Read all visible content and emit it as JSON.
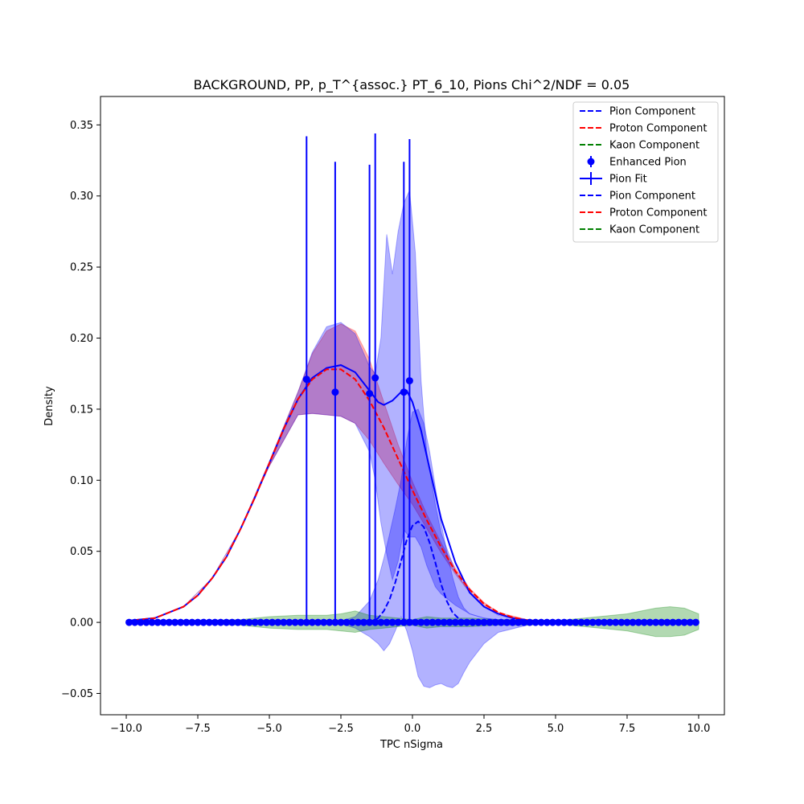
{
  "chart_data": {
    "type": "line",
    "title": "BACKGROUND, PP, p_T^{assoc.} PT_6_10, Pions Chi^2/NDF = 0.05",
    "xlabel": "TPC nSigma",
    "ylabel": "Density",
    "xlim": [
      -10.9,
      10.9
    ],
    "ylim": [
      -0.065,
      0.37
    ],
    "x_ticks": [
      -10,
      -7.5,
      -5,
      -2.5,
      0,
      2.5,
      5,
      7.5,
      10
    ],
    "x_tick_labels": [
      "−10.0",
      "−7.5",
      "−5.0",
      "−2.5",
      "0.0",
      "2.5",
      "5.0",
      "7.5",
      "10.0"
    ],
    "y_ticks": [
      -0.05,
      0,
      0.05,
      0.1,
      0.15,
      0.2,
      0.25,
      0.3,
      0.35
    ],
    "y_tick_labels": [
      "−0.05",
      "0.00",
      "0.05",
      "0.10",
      "0.15",
      "0.20",
      "0.25",
      "0.30",
      "0.35"
    ],
    "grid": false,
    "legend_position": "top-right",
    "colors": {
      "pion": "#0000ff",
      "proton": "#ff0000",
      "kaon": "#008000"
    },
    "legend": [
      {
        "label": "Pion Component",
        "style": "dashed",
        "color": "#0000ff"
      },
      {
        "label": "Proton Component",
        "style": "dashed",
        "color": "#ff0000"
      },
      {
        "label": "Kaon Component",
        "style": "dashed",
        "color": "#008000"
      },
      {
        "label": "Enhanced Pion",
        "style": "marker",
        "color": "#0000ff"
      },
      {
        "label": "Pion Fit",
        "style": "errorbar",
        "color": "#0000ff"
      },
      {
        "label": "Pion Component",
        "style": "dashed",
        "color": "#0000ff"
      },
      {
        "label": "Proton Component",
        "style": "dashed",
        "color": "#ff0000"
      },
      {
        "label": "Kaon Component",
        "style": "dashed",
        "color": "#008000"
      }
    ],
    "series": [
      {
        "name": "Pion Fit",
        "style": "solid",
        "color": "#0000ff",
        "x": [
          -10,
          -9,
          -8,
          -7.5,
          -7,
          -6.5,
          -6,
          -5.5,
          -5,
          -4.5,
          -4,
          -3.5,
          -3,
          -2.5,
          -2,
          -1.5,
          -1.2,
          -1,
          -0.7,
          -0.4,
          -0.2,
          0,
          0.3,
          0.6,
          1,
          1.5,
          2,
          2.5,
          3,
          3.5,
          4,
          4.5,
          5,
          6,
          7,
          8,
          9,
          10
        ],
        "y": [
          0.001,
          0.003,
          0.011,
          0.019,
          0.031,
          0.046,
          0.066,
          0.088,
          0.112,
          0.136,
          0.157,
          0.172,
          0.179,
          0.181,
          0.176,
          0.163,
          0.155,
          0.153,
          0.156,
          0.162,
          0.163,
          0.155,
          0.135,
          0.108,
          0.073,
          0.042,
          0.021,
          0.011,
          0.006,
          0.003,
          0.0015,
          0.0005,
          0.0002,
          0,
          0,
          0,
          0,
          0
        ]
      },
      {
        "name": "Proton Component",
        "style": "dashed",
        "color": "#ff0000",
        "x": [
          -10,
          -9,
          -8,
          -7.5,
          -7,
          -6.5,
          -6,
          -5.5,
          -5,
          -4.5,
          -4,
          -3.5,
          -3,
          -2.5,
          -2,
          -1.5,
          -1,
          -0.5,
          0,
          0.5,
          1,
          1.5,
          2,
          2.5,
          3,
          3.5,
          4,
          4.5,
          5,
          6,
          7,
          8,
          9,
          10
        ],
        "y": [
          0.001,
          0.003,
          0.011,
          0.019,
          0.031,
          0.046,
          0.066,
          0.088,
          0.112,
          0.136,
          0.157,
          0.171,
          0.178,
          0.178,
          0.171,
          0.156,
          0.137,
          0.115,
          0.093,
          0.072,
          0.053,
          0.036,
          0.023,
          0.013,
          0.007,
          0.0035,
          0.0016,
          0.0007,
          0.0003,
          0,
          0,
          0,
          0,
          0
        ]
      },
      {
        "name": "Pion Component",
        "style": "dashed",
        "color": "#0000ff",
        "x": [
          -1.8,
          -1.4,
          -1.2,
          -1,
          -0.8,
          -0.6,
          -0.4,
          -0.2,
          0,
          0.2,
          0.4,
          0.6,
          0.8,
          1,
          1.2,
          1.4,
          1.6,
          1.8,
          2.0
        ],
        "y": [
          0,
          0.001,
          0.003,
          0.008,
          0.016,
          0.028,
          0.043,
          0.058,
          0.068,
          0.071,
          0.067,
          0.056,
          0.042,
          0.027,
          0.015,
          0.007,
          0.003,
          0.001,
          0
        ]
      },
      {
        "name": "Kaon Component",
        "style": "dashed",
        "color": "#008000",
        "x": [
          -10,
          10
        ],
        "y": [
          0,
          0
        ]
      },
      {
        "name": "Enhanced Pion",
        "style": "points",
        "color": "#0000ff",
        "points": [
          {
            "x": -3.7,
            "y": 0.171,
            "err": 0.171
          },
          {
            "x": -2.7,
            "y": 0.162,
            "err": 0.162
          },
          {
            "x": -1.5,
            "y": 0.161,
            "err": 0.161
          },
          {
            "x": -1.3,
            "y": 0.172,
            "err": 0.172
          },
          {
            "x": -0.3,
            "y": 0.162,
            "err": 0.162
          },
          {
            "x": -0.1,
            "y": 0.17,
            "err": 0.17
          }
        ],
        "zero_points_x_range": [
          -9.9,
          9.9
        ],
        "zero_points_count": 100
      }
    ],
    "bands": [
      {
        "name": "Proton band",
        "color": "#ff0000",
        "x": [
          -10,
          -9,
          -8,
          -7,
          -6,
          -5,
          -4,
          -3.5,
          -3,
          -2.5,
          -2,
          -1.5,
          -1,
          -0.5,
          0,
          0.5,
          1,
          1.5,
          2,
          2.5,
          3,
          4,
          5
        ],
        "upper": [
          0.001,
          0.003,
          0.011,
          0.031,
          0.066,
          0.113,
          0.162,
          0.189,
          0.205,
          0.21,
          0.205,
          0.185,
          0.155,
          0.125,
          0.099,
          0.076,
          0.056,
          0.038,
          0.024,
          0.014,
          0.007,
          0.002,
          0.0005
        ],
        "lower": [
          0.001,
          0.003,
          0.011,
          0.031,
          0.066,
          0.11,
          0.146,
          0.147,
          0.146,
          0.145,
          0.14,
          0.128,
          0.112,
          0.097,
          0.083,
          0.066,
          0.049,
          0.034,
          0.021,
          0.012,
          0.006,
          0.0015,
          0.0003
        ]
      },
      {
        "name": "Pion fit band",
        "color": "#0000ff",
        "x": [
          -10,
          -9,
          -8,
          -7,
          -6,
          -5,
          -4,
          -3.5,
          -3,
          -2.5,
          -2,
          -1.5,
          -1.3,
          -1.1,
          -0.9,
          -0.7,
          -0.5,
          -0.3,
          -0.1,
          0.1,
          0.3,
          0.5,
          0.8,
          1.0,
          1.5,
          2,
          2.5,
          3,
          4,
          5
        ],
        "upper": [
          0.001,
          0.003,
          0.011,
          0.031,
          0.066,
          0.113,
          0.162,
          0.19,
          0.208,
          0.211,
          0.203,
          0.18,
          0.175,
          0.2,
          0.273,
          0.245,
          0.275,
          0.295,
          0.304,
          0.26,
          0.17,
          0.12,
          0.083,
          0.063,
          0.036,
          0.021,
          0.011,
          0.005,
          0.001,
          0.0002
        ],
        "lower": [
          0.001,
          0.003,
          0.011,
          0.031,
          0.066,
          0.11,
          0.146,
          0.147,
          0.146,
          0.145,
          0.14,
          0.12,
          0.1,
          0.07,
          0.048,
          0.03,
          0.043,
          0.065,
          0.06,
          0.06,
          0.053,
          0.04,
          0.025,
          0.02,
          0.012,
          0.006,
          0.003,
          0.001,
          0.0005,
          0.0001
        ]
      },
      {
        "name": "Pion component band",
        "color": "#0000ff",
        "x": [
          -3,
          -2.5,
          -2,
          -1.5,
          -1.2,
          -1,
          -0.8,
          -0.6,
          -0.4,
          -0.2,
          0,
          0.2,
          0.4,
          0.6,
          0.8,
          1,
          1.2,
          1.4,
          1.6,
          1.8,
          2,
          2.5,
          3,
          4,
          5
        ],
        "upper": [
          0,
          0.001,
          0.004,
          0.015,
          0.03,
          0.045,
          0.062,
          0.08,
          0.1,
          0.128,
          0.148,
          0.15,
          0.14,
          0.12,
          0.095,
          0.07,
          0.05,
          0.032,
          0.018,
          0.01,
          0.006,
          0.003,
          0.002,
          0.001,
          0
        ],
        "lower": [
          0,
          -0.001,
          -0.004,
          -0.01,
          -0.015,
          -0.02,
          -0.015,
          -0.006,
          0.004,
          -0.006,
          -0.02,
          -0.038,
          -0.045,
          -0.046,
          -0.044,
          -0.043,
          -0.045,
          -0.046,
          -0.043,
          -0.035,
          -0.028,
          -0.015,
          -0.007,
          -0.002,
          0
        ]
      },
      {
        "name": "Kaon band",
        "color": "#008000",
        "x": [
          -10,
          -8,
          -6,
          -5,
          -4,
          -3,
          -2.5,
          -2,
          -1.5,
          -1,
          -0.5,
          0,
          0.5,
          1,
          2,
          3,
          4,
          5,
          6,
          7,
          7.5,
          8,
          8.5,
          9,
          9.5,
          10
        ],
        "upper": [
          0,
          0.001,
          0.002,
          0.004,
          0.005,
          0.005,
          0.006,
          0.008,
          0.005,
          0.004,
          0.003,
          0.002,
          0.004,
          0.003,
          0.003,
          0.002,
          0.002,
          0.001,
          0.003,
          0.005,
          0.006,
          0.008,
          0.01,
          0.011,
          0.01,
          0.006
        ],
        "lower": [
          0,
          -0.001,
          -0.002,
          -0.004,
          -0.005,
          -0.005,
          -0.006,
          -0.007,
          -0.005,
          -0.004,
          -0.003,
          -0.002,
          -0.004,
          -0.003,
          -0.003,
          -0.002,
          -0.002,
          -0.001,
          -0.003,
          -0.005,
          -0.006,
          -0.008,
          -0.01,
          -0.01,
          -0.009,
          -0.005
        ]
      }
    ]
  }
}
